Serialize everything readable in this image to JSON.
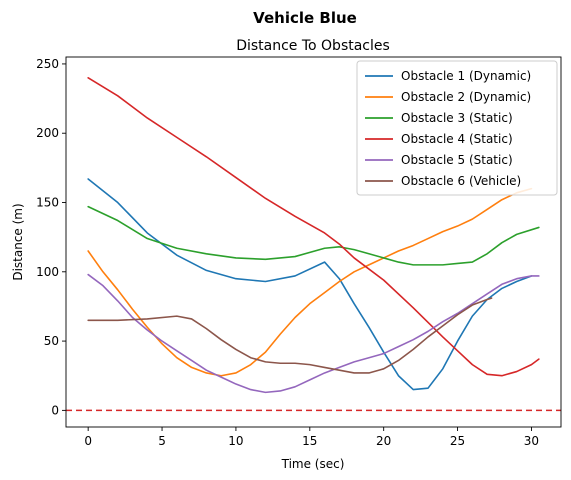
{
  "chart_data": {
    "type": "line",
    "suptitle": "Vehicle Blue",
    "title": "Distance To Obstacles",
    "xlabel": "Time (sec)",
    "ylabel": "Distance (m)",
    "xlim": [
      -1.5,
      32
    ],
    "ylim": [
      -12,
      255
    ],
    "xticks": [
      0,
      5,
      10,
      15,
      20,
      25,
      30
    ],
    "yticks": [
      0,
      50,
      100,
      150,
      200,
      250
    ],
    "grid": false,
    "legend_position": "top-right",
    "reference_line": {
      "y": 0,
      "color": "#d62728",
      "style": "dashed"
    },
    "series": [
      {
        "name": "Obstacle 1 (Dynamic)",
        "color": "#1f77b4",
        "points": [
          [
            0,
            167
          ],
          [
            2,
            150
          ],
          [
            4,
            128
          ],
          [
            6,
            112
          ],
          [
            8,
            101
          ],
          [
            10,
            95
          ],
          [
            12,
            93
          ],
          [
            14,
            97
          ],
          [
            16,
            107
          ],
          [
            17,
            95
          ],
          [
            18,
            77
          ],
          [
            19,
            60
          ],
          [
            20,
            42
          ],
          [
            21,
            25
          ],
          [
            22,
            15
          ],
          [
            23,
            16
          ],
          [
            24,
            30
          ],
          [
            25,
            50
          ],
          [
            26,
            68
          ],
          [
            27,
            80
          ],
          [
            28,
            88
          ],
          [
            29,
            93
          ],
          [
            30,
            97
          ]
        ]
      },
      {
        "name": "Obstacle 2 (Dynamic)",
        "color": "#ff7f0e",
        "points": [
          [
            0,
            115
          ],
          [
            1,
            100
          ],
          [
            2,
            87
          ],
          [
            3,
            73
          ],
          [
            4,
            60
          ],
          [
            5,
            48
          ],
          [
            6,
            38
          ],
          [
            7,
            31
          ],
          [
            8,
            27
          ],
          [
            9,
            25
          ],
          [
            10,
            27
          ],
          [
            11,
            33
          ],
          [
            12,
            42
          ],
          [
            13,
            55
          ],
          [
            14,
            67
          ],
          [
            15,
            77
          ],
          [
            16,
            85
          ],
          [
            17,
            93
          ],
          [
            18,
            100
          ],
          [
            19,
            105
          ],
          [
            20,
            110
          ],
          [
            21,
            115
          ],
          [
            22,
            119
          ],
          [
            23,
            124
          ],
          [
            24,
            129
          ],
          [
            25,
            133
          ],
          [
            26,
            138
          ],
          [
            27,
            145
          ],
          [
            28,
            152
          ],
          [
            29,
            157
          ],
          [
            30,
            160
          ]
        ]
      },
      {
        "name": "Obstacle 3 (Static)",
        "color": "#2ca02c",
        "points": [
          [
            0,
            147
          ],
          [
            2,
            137
          ],
          [
            4,
            124
          ],
          [
            6,
            117
          ],
          [
            8,
            113
          ],
          [
            10,
            110
          ],
          [
            12,
            109
          ],
          [
            14,
            111
          ],
          [
            16,
            117
          ],
          [
            17,
            118
          ],
          [
            18,
            116
          ],
          [
            19,
            113
          ],
          [
            20,
            110
          ],
          [
            21,
            107
          ],
          [
            22,
            105
          ],
          [
            23,
            105
          ],
          [
            24,
            105
          ],
          [
            25,
            106
          ],
          [
            26,
            107
          ],
          [
            27,
            113
          ],
          [
            28,
            121
          ],
          [
            29,
            127
          ],
          [
            30.5,
            132
          ]
        ]
      },
      {
        "name": "Obstacle 4 (Static)",
        "color": "#d62728",
        "points": [
          [
            0,
            240
          ],
          [
            2,
            227
          ],
          [
            4,
            211
          ],
          [
            6,
            197
          ],
          [
            8,
            183
          ],
          [
            10,
            168
          ],
          [
            12,
            153
          ],
          [
            14,
            140
          ],
          [
            16,
            128
          ],
          [
            17,
            120
          ],
          [
            18,
            110
          ],
          [
            20,
            94
          ],
          [
            22,
            74
          ],
          [
            24,
            53
          ],
          [
            25,
            43
          ],
          [
            26,
            33
          ],
          [
            27,
            26
          ],
          [
            28,
            25
          ],
          [
            29,
            28
          ],
          [
            30,
            33
          ],
          [
            30.5,
            37
          ]
        ]
      },
      {
        "name": "Obstacle 5 (Static)",
        "color": "#9467bd",
        "points": [
          [
            0,
            98
          ],
          [
            1,
            90
          ],
          [
            2,
            79
          ],
          [
            3,
            67
          ],
          [
            4,
            58
          ],
          [
            5,
            50
          ],
          [
            6,
            43
          ],
          [
            7,
            36
          ],
          [
            8,
            29
          ],
          [
            9,
            24
          ],
          [
            10,
            19
          ],
          [
            11,
            15
          ],
          [
            12,
            13
          ],
          [
            13,
            14
          ],
          [
            14,
            17
          ],
          [
            15,
            22
          ],
          [
            16,
            27
          ],
          [
            17,
            31
          ],
          [
            18,
            35
          ],
          [
            19,
            38
          ],
          [
            20,
            41
          ],
          [
            21,
            46
          ],
          [
            22,
            51
          ],
          [
            23,
            57
          ],
          [
            24,
            64
          ],
          [
            25,
            70
          ],
          [
            26,
            77
          ],
          [
            27,
            84
          ],
          [
            28,
            91
          ],
          [
            29,
            95
          ],
          [
            30,
            97
          ],
          [
            30.5,
            97
          ]
        ]
      },
      {
        "name": "Obstacle 6 (Vehicle)",
        "color": "#8c564b",
        "points": [
          [
            0,
            65
          ],
          [
            2,
            65
          ],
          [
            4,
            66
          ],
          [
            6,
            68
          ],
          [
            7,
            66
          ],
          [
            8,
            59
          ],
          [
            9,
            51
          ],
          [
            10,
            44
          ],
          [
            11,
            38
          ],
          [
            12,
            35
          ],
          [
            13,
            34
          ],
          [
            14,
            34
          ],
          [
            15,
            33
          ],
          [
            16,
            31
          ],
          [
            17,
            29
          ],
          [
            18,
            27
          ],
          [
            19,
            27
          ],
          [
            20,
            30
          ],
          [
            21,
            36
          ],
          [
            22,
            44
          ],
          [
            23,
            53
          ],
          [
            24,
            61
          ],
          [
            25,
            69
          ],
          [
            26,
            76
          ],
          [
            27,
            80
          ],
          [
            27.3,
            81
          ]
        ]
      }
    ]
  }
}
